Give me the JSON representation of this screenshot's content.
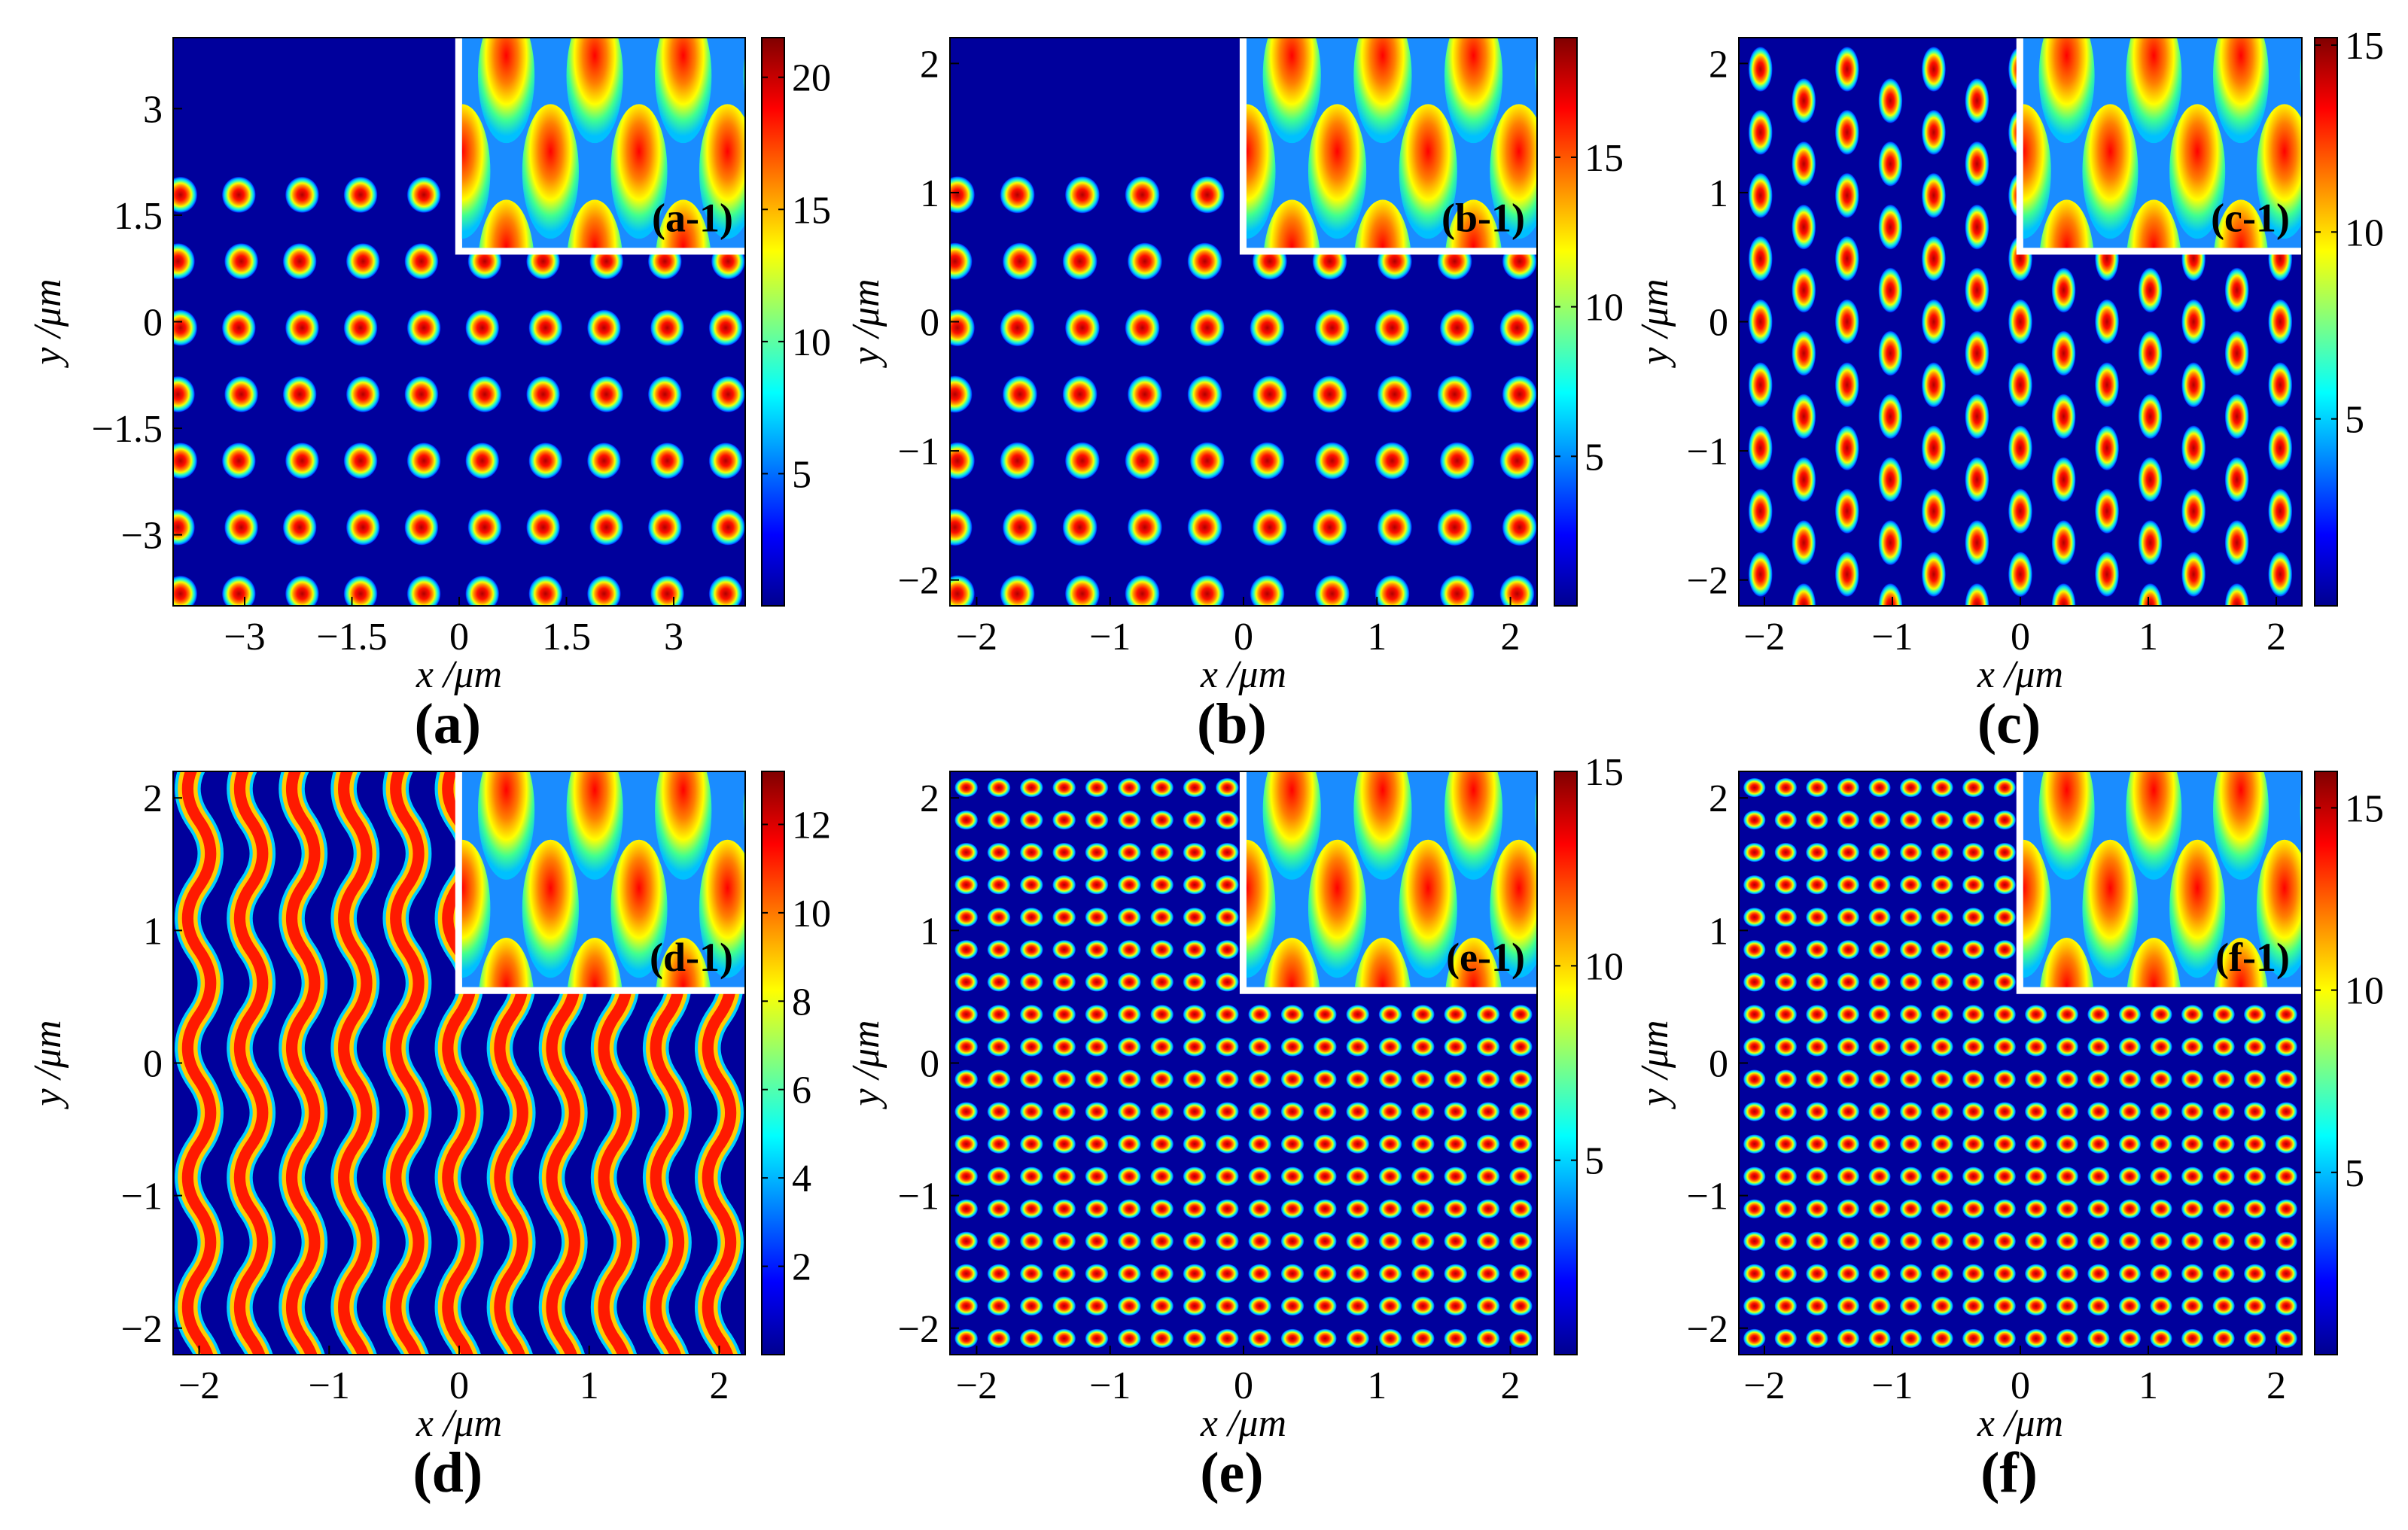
{
  "figure": {
    "xlabel": "x /μm",
    "ylabel": "y /μm"
  },
  "colormap": [
    "#00008f",
    "#0000ff",
    "#0080ff",
    "#00ffff",
    "#80ff80",
    "#ffff00",
    "#ff8000",
    "#ff0000",
    "#800000"
  ],
  "chart_data": [
    {
      "type": "heatmap",
      "label": "(a)",
      "inset_label": "(a-1)",
      "pattern": "split-spot lattice",
      "xlim": [
        -4,
        4
      ],
      "ylim": [
        -4,
        4
      ],
      "xticks": [
        -3,
        -1.5,
        0,
        1.5,
        3
      ],
      "xticklabels": [
        "−3",
        "−1.5",
        "0",
        "1.5",
        "3"
      ],
      "yticks": [
        3,
        1.5,
        0,
        -1.5,
        -3
      ],
      "yticklabels": [
        "3",
        "1.5",
        "0",
        "−1.5",
        "−3"
      ],
      "colorbar_max": 21.5,
      "colorbar_ticks": [
        5,
        10,
        15,
        20
      ],
      "colorbar_ticklabels": [
        "5",
        "10",
        "15",
        "20"
      ]
    },
    {
      "type": "heatmap",
      "label": "(b)",
      "inset_label": "(b-1)",
      "pattern": "split-spot lattice",
      "xlim": [
        -2.2,
        2.2
      ],
      "ylim": [
        -2.2,
        2.2
      ],
      "xticks": [
        -2,
        -1,
        0,
        1,
        2
      ],
      "xticklabels": [
        "−2",
        "−1",
        "0",
        "1",
        "2"
      ],
      "yticks": [
        2,
        1,
        0,
        -1,
        -2
      ],
      "yticklabels": [
        "2",
        "1",
        "0",
        "−1",
        "−2"
      ],
      "colorbar_max": 19,
      "colorbar_ticks": [
        5,
        10,
        15
      ],
      "colorbar_ticklabels": [
        "5",
        "10",
        "15"
      ]
    },
    {
      "type": "heatmap",
      "label": "(c)",
      "inset_label": "(c-1)",
      "pattern": "vertical bar lattice",
      "xlim": [
        -2.2,
        2.2
      ],
      "ylim": [
        -2.2,
        2.2
      ],
      "xticks": [
        -2,
        -1,
        0,
        1,
        2
      ],
      "xticklabels": [
        "−2",
        "−1",
        "0",
        "1",
        "2"
      ],
      "yticks": [
        2,
        1,
        0,
        -1,
        -2
      ],
      "yticklabels": [
        "2",
        "1",
        "0",
        "−1",
        "−2"
      ],
      "colorbar_max": 15.2,
      "colorbar_ticks": [
        5,
        10,
        15
      ],
      "colorbar_ticklabels": [
        "5",
        "10",
        "15"
      ]
    },
    {
      "type": "heatmap",
      "label": "(d)",
      "inset_label": "(d-1)",
      "pattern": "wavy stripes",
      "xlim": [
        -2.2,
        2.2
      ],
      "ylim": [
        -2.2,
        2.2
      ],
      "xticks": [
        -2,
        -1,
        0,
        1,
        2
      ],
      "xticklabels": [
        "−2",
        "−1",
        "0",
        "1",
        "2"
      ],
      "yticks": [
        2,
        1,
        0,
        -1,
        -2
      ],
      "yticklabels": [
        "2",
        "1",
        "0",
        "−1",
        "−2"
      ],
      "colorbar_max": 13.2,
      "colorbar_ticks": [
        2,
        4,
        6,
        8,
        10,
        12
      ],
      "colorbar_ticklabels": [
        "2",
        "4",
        "6",
        "8",
        "10",
        "12"
      ]
    },
    {
      "type": "heatmap",
      "label": "(e)",
      "inset_label": "(e-1)",
      "pattern": "dense dash lattice",
      "xlim": [
        -2.2,
        2.2
      ],
      "ylim": [
        -2.2,
        2.2
      ],
      "xticks": [
        -2,
        -1,
        0,
        1,
        2
      ],
      "xticklabels": [
        "−2",
        "−1",
        "0",
        "1",
        "2"
      ],
      "yticks": [
        2,
        1,
        0,
        -1,
        -2
      ],
      "yticklabels": [
        "2",
        "1",
        "0",
        "−1",
        "−2"
      ],
      "colorbar_max": 15,
      "colorbar_ticks": [
        5,
        10,
        15
      ],
      "colorbar_ticklabels": [
        "5",
        "10",
        "15"
      ]
    },
    {
      "type": "heatmap",
      "label": "(f)",
      "inset_label": "(f-1)",
      "pattern": "dense dash lattice",
      "xlim": [
        -2.2,
        2.2
      ],
      "ylim": [
        -2.2,
        2.2
      ],
      "xticks": [
        -2,
        -1,
        0,
        1,
        2
      ],
      "xticklabels": [
        "−2",
        "−1",
        "0",
        "1",
        "2"
      ],
      "yticks": [
        2,
        1,
        0,
        -1,
        -2
      ],
      "yticklabels": [
        "2",
        "1",
        "0",
        "−1",
        "−2"
      ],
      "colorbar_max": 16,
      "colorbar_ticks": [
        5,
        10,
        15
      ],
      "colorbar_ticklabels": [
        "5",
        "10",
        "15"
      ]
    }
  ]
}
